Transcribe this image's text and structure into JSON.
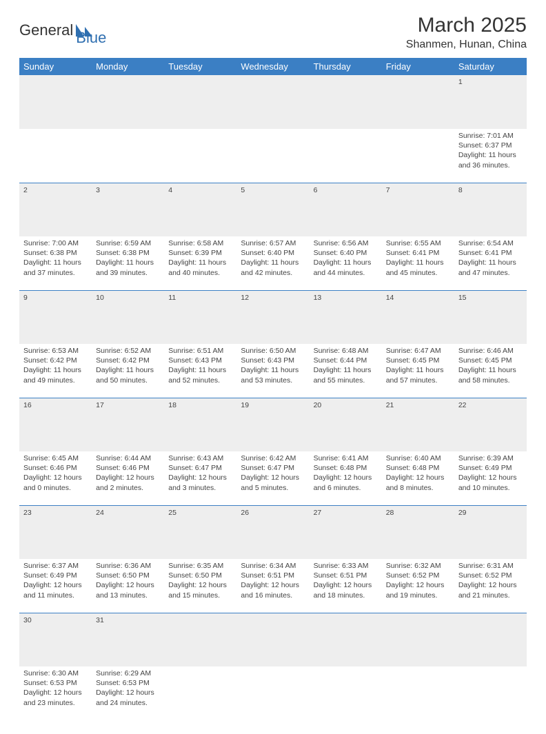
{
  "logo": {
    "first": "General",
    "second": "Blue"
  },
  "title": "March 2025",
  "location": "Shanmen, Hunan, China",
  "headers": [
    "Sunday",
    "Monday",
    "Tuesday",
    "Wednesday",
    "Thursday",
    "Friday",
    "Saturday"
  ],
  "colors": {
    "header_bg": "#3b7fc4",
    "header_fg": "#ffffff",
    "daynum_bg": "#eeeeee",
    "border": "#3b7fc4",
    "logo_accent": "#2f6fb0"
  },
  "weeks": [
    [
      null,
      null,
      null,
      null,
      null,
      null,
      {
        "n": "1",
        "sr": "7:01 AM",
        "ss": "6:37 PM",
        "dh": "11",
        "dm": "36"
      }
    ],
    [
      {
        "n": "2",
        "sr": "7:00 AM",
        "ss": "6:38 PM",
        "dh": "11",
        "dm": "37"
      },
      {
        "n": "3",
        "sr": "6:59 AM",
        "ss": "6:38 PM",
        "dh": "11",
        "dm": "39"
      },
      {
        "n": "4",
        "sr": "6:58 AM",
        "ss": "6:39 PM",
        "dh": "11",
        "dm": "40"
      },
      {
        "n": "5",
        "sr": "6:57 AM",
        "ss": "6:40 PM",
        "dh": "11",
        "dm": "42"
      },
      {
        "n": "6",
        "sr": "6:56 AM",
        "ss": "6:40 PM",
        "dh": "11",
        "dm": "44"
      },
      {
        "n": "7",
        "sr": "6:55 AM",
        "ss": "6:41 PM",
        "dh": "11",
        "dm": "45"
      },
      {
        "n": "8",
        "sr": "6:54 AM",
        "ss": "6:41 PM",
        "dh": "11",
        "dm": "47"
      }
    ],
    [
      {
        "n": "9",
        "sr": "6:53 AM",
        "ss": "6:42 PM",
        "dh": "11",
        "dm": "49"
      },
      {
        "n": "10",
        "sr": "6:52 AM",
        "ss": "6:42 PM",
        "dh": "11",
        "dm": "50"
      },
      {
        "n": "11",
        "sr": "6:51 AM",
        "ss": "6:43 PM",
        "dh": "11",
        "dm": "52"
      },
      {
        "n": "12",
        "sr": "6:50 AM",
        "ss": "6:43 PM",
        "dh": "11",
        "dm": "53"
      },
      {
        "n": "13",
        "sr": "6:48 AM",
        "ss": "6:44 PM",
        "dh": "11",
        "dm": "55"
      },
      {
        "n": "14",
        "sr": "6:47 AM",
        "ss": "6:45 PM",
        "dh": "11",
        "dm": "57"
      },
      {
        "n": "15",
        "sr": "6:46 AM",
        "ss": "6:45 PM",
        "dh": "11",
        "dm": "58"
      }
    ],
    [
      {
        "n": "16",
        "sr": "6:45 AM",
        "ss": "6:46 PM",
        "dh": "12",
        "dm": "0"
      },
      {
        "n": "17",
        "sr": "6:44 AM",
        "ss": "6:46 PM",
        "dh": "12",
        "dm": "2"
      },
      {
        "n": "18",
        "sr": "6:43 AM",
        "ss": "6:47 PM",
        "dh": "12",
        "dm": "3"
      },
      {
        "n": "19",
        "sr": "6:42 AM",
        "ss": "6:47 PM",
        "dh": "12",
        "dm": "5"
      },
      {
        "n": "20",
        "sr": "6:41 AM",
        "ss": "6:48 PM",
        "dh": "12",
        "dm": "6"
      },
      {
        "n": "21",
        "sr": "6:40 AM",
        "ss": "6:48 PM",
        "dh": "12",
        "dm": "8"
      },
      {
        "n": "22",
        "sr": "6:39 AM",
        "ss": "6:49 PM",
        "dh": "12",
        "dm": "10"
      }
    ],
    [
      {
        "n": "23",
        "sr": "6:37 AM",
        "ss": "6:49 PM",
        "dh": "12",
        "dm": "11"
      },
      {
        "n": "24",
        "sr": "6:36 AM",
        "ss": "6:50 PM",
        "dh": "12",
        "dm": "13"
      },
      {
        "n": "25",
        "sr": "6:35 AM",
        "ss": "6:50 PM",
        "dh": "12",
        "dm": "15"
      },
      {
        "n": "26",
        "sr": "6:34 AM",
        "ss": "6:51 PM",
        "dh": "12",
        "dm": "16"
      },
      {
        "n": "27",
        "sr": "6:33 AM",
        "ss": "6:51 PM",
        "dh": "12",
        "dm": "18"
      },
      {
        "n": "28",
        "sr": "6:32 AM",
        "ss": "6:52 PM",
        "dh": "12",
        "dm": "19"
      },
      {
        "n": "29",
        "sr": "6:31 AM",
        "ss": "6:52 PM",
        "dh": "12",
        "dm": "21"
      }
    ],
    [
      {
        "n": "30",
        "sr": "6:30 AM",
        "ss": "6:53 PM",
        "dh": "12",
        "dm": "23"
      },
      {
        "n": "31",
        "sr": "6:29 AM",
        "ss": "6:53 PM",
        "dh": "12",
        "dm": "24"
      },
      null,
      null,
      null,
      null,
      null
    ]
  ]
}
